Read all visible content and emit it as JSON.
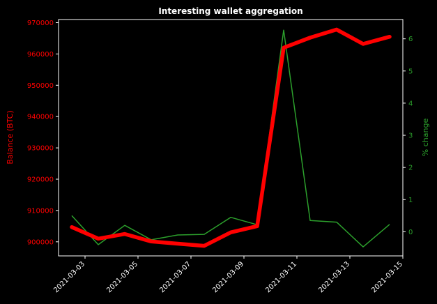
{
  "chart_data": {
    "type": "line",
    "title": "Interesting wallet aggregation",
    "xlabel": "",
    "ylabel_left": "Balance (BTC)",
    "ylabel_right": "% change",
    "colors": {
      "background": "#000000",
      "balance": "#ff0000",
      "pct": "#2ca02c",
      "axes": "#ffffff"
    },
    "x": [
      "2021-03-02 12:00",
      "2021-03-03 12:00",
      "2021-03-04 12:00",
      "2021-03-05 12:00",
      "2021-03-06 12:00",
      "2021-03-07 12:00",
      "2021-03-08 12:00",
      "2021-03-09 12:00",
      "2021-03-10 12:00",
      "2021-03-11 12:00",
      "2021-03-12 12:00",
      "2021-03-13 12:00",
      "2021-03-14 12:00"
    ],
    "series": [
      {
        "name": "Balance (BTC)",
        "axis": "left",
        "values": [
          904700,
          901000,
          902500,
          900100,
          899400,
          898700,
          903000,
          905000,
          962000,
          965200,
          967800,
          963200,
          965500
        ]
      },
      {
        "name": "% change",
        "axis": "right",
        "values": [
          0.5,
          -0.4,
          0.2,
          -0.25,
          -0.1,
          -0.08,
          0.45,
          0.22,
          6.27,
          0.35,
          0.3,
          -0.47,
          0.23
        ]
      }
    ],
    "xlim": [
      "2021-03-02 00:00",
      "2021-03-15 00:00"
    ],
    "ylim_left": [
      895500,
      971000
    ],
    "ylim_right": [
      -0.75,
      6.6
    ],
    "x_ticks": [
      "2021-03-03",
      "2021-03-05",
      "2021-03-07",
      "2021-03-09",
      "2021-03-11",
      "2021-03-13",
      "2021-03-15"
    ],
    "y_ticks_left": [
      900000,
      910000,
      920000,
      930000,
      940000,
      950000,
      960000,
      970000
    ],
    "y_ticks_right": [
      0,
      1,
      2,
      3,
      4,
      5,
      6
    ],
    "grid": false
  }
}
